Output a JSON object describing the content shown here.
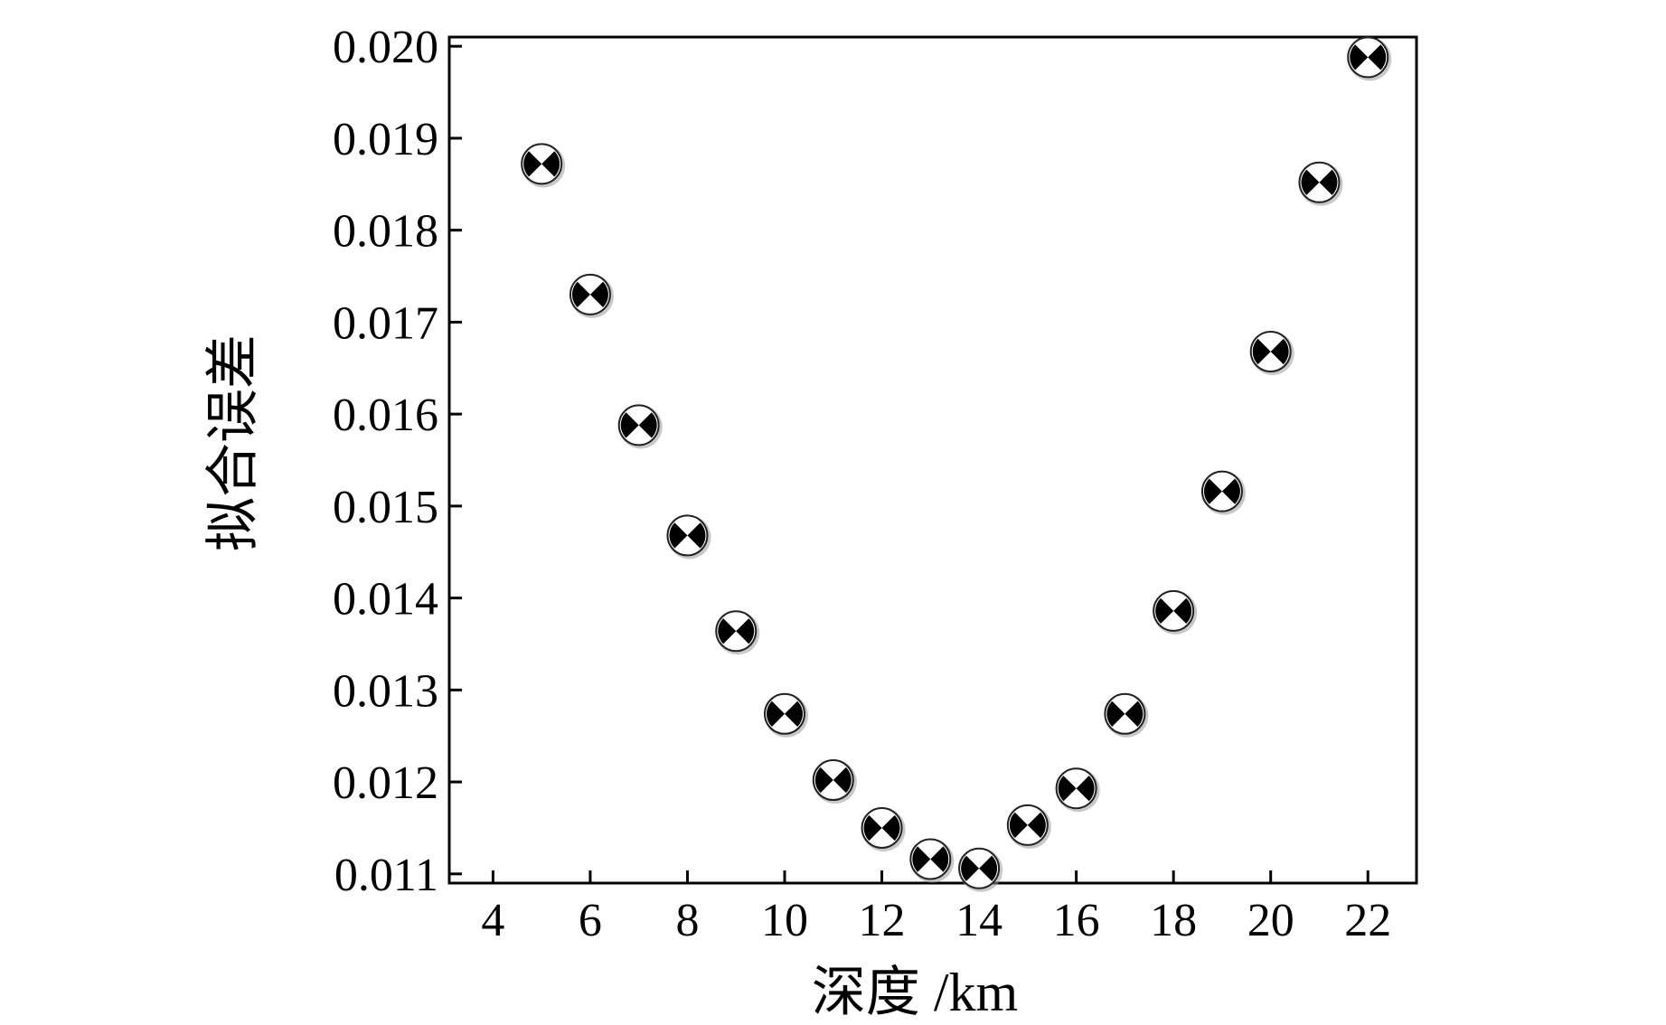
{
  "chart_data": {
    "type": "scatter",
    "title": "",
    "xlabel": "深度 /km",
    "ylabel": "拟合误差",
    "xlim": [
      3.1,
      23.0
    ],
    "ylim": [
      0.0109,
      0.0201
    ],
    "xticks": [
      4,
      6,
      8,
      10,
      12,
      14,
      16,
      18,
      20,
      22
    ],
    "xtick_labels": [
      "4",
      "6",
      "8",
      "10",
      "12",
      "14",
      "16",
      "18",
      "20",
      "22"
    ],
    "yticks": [
      0.011,
      0.012,
      0.013,
      0.014,
      0.015,
      0.016,
      0.017,
      0.018,
      0.019,
      0.02
    ],
    "ytick_labels": [
      "0.011",
      "0.012",
      "0.013",
      "0.014",
      "0.015",
      "0.016",
      "0.017",
      "0.018",
      "0.019",
      "0.020"
    ],
    "grid": false,
    "legend": "none",
    "marker": "beachball",
    "series": [
      {
        "x": [
          5,
          6,
          7,
          8,
          9,
          10,
          11,
          12,
          13,
          14,
          15,
          16,
          17,
          18,
          19,
          20,
          21,
          22
        ],
        "y": [
          0.01872,
          0.0173,
          0.01588,
          0.01468,
          0.01364,
          0.01274,
          0.01202,
          0.0115,
          0.01116,
          0.01106,
          0.01153,
          0.01193,
          0.01274,
          0.01386,
          0.01516,
          0.01668,
          0.01852,
          0.01988
        ]
      }
    ]
  }
}
